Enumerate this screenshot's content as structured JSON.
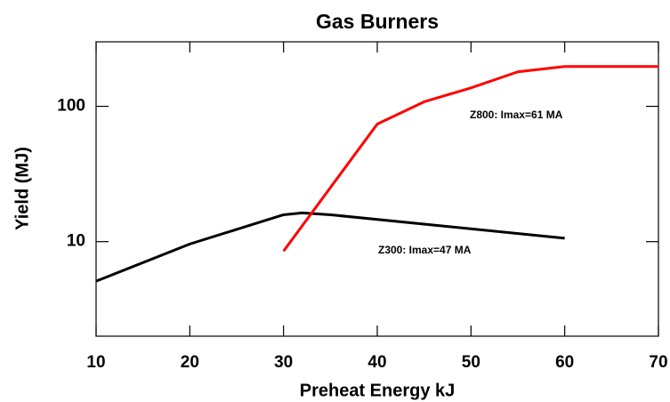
{
  "chart_data": {
    "type": "line",
    "title": "Gas Burners",
    "x_label": "Preheat Energy kJ",
    "y_label": "Yield (MJ)",
    "xlim": [
      10,
      70
    ],
    "xticks": [
      10,
      20,
      30,
      40,
      50,
      60,
      70
    ],
    "ylim": [
      2,
      300
    ],
    "yticks": [
      10,
      100
    ],
    "log_y": true,
    "grid": false,
    "series": [
      {
        "name": "Z300",
        "color": "#000000",
        "x": [
          10,
          20,
          30,
          32,
          35,
          60
        ],
        "values": [
          5.1,
          9.6,
          15.8,
          16.3,
          15.8,
          10.6
        ]
      },
      {
        "name": "Z800",
        "color": "#ff0000",
        "x": [
          30,
          40,
          45,
          50,
          55,
          60,
          70
        ],
        "values": [
          8.5,
          74,
          108,
          137,
          180,
          197,
          197
        ]
      }
    ],
    "annotations": [
      {
        "text": "Z300: Imax=47 MA",
        "color": "#000000"
      },
      {
        "text": "Z800: Imax=61 MA",
        "color": "#ff0000"
      }
    ]
  }
}
